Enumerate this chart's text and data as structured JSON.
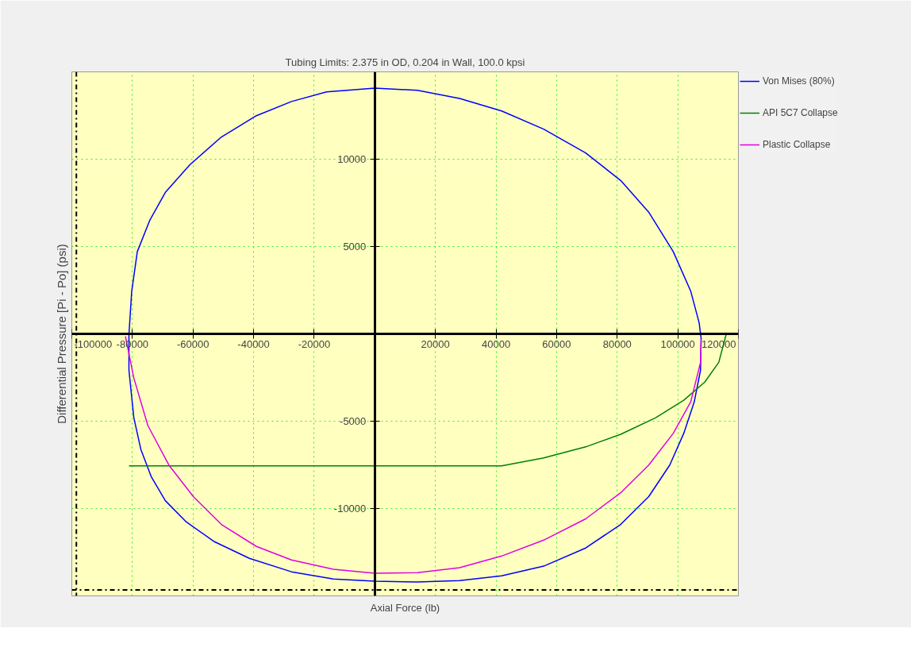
{
  "chart_data": {
    "type": "line",
    "title": "Tubing Limits: 2.375 in OD, 0.204 in Wall, 100.0 kpsi",
    "xlabel": "Axial Force (lb)",
    "ylabel": "Differential Pressure [Pi - Po] (psi)",
    "xlim": [
      -100000,
      120000
    ],
    "ylim": [
      -15000,
      15000
    ],
    "xticks": [
      -100000,
      -80000,
      -60000,
      -40000,
      -20000,
      {
        "value": 0,
        "label": null
      },
      20000,
      40000,
      60000,
      80000,
      100000,
      120000
    ],
    "yticks": [
      -10000,
      -5000,
      {
        "value": 0,
        "label": null
      },
      5000,
      10000
    ],
    "grid": true,
    "legend": "right",
    "line_style": "solid",
    "marker": "none",
    "ref_lines": [
      {
        "axis": "x",
        "value": -98500,
        "color": "#000000",
        "line_style": "dashdot"
      },
      {
        "axis": "y",
        "value": -14660,
        "color": "#000000",
        "line_style": "dashdot"
      }
    ],
    "series": [
      {
        "name": "Von Mises (80%)",
        "color": "#0000ff",
        "x": [
          -81150,
          -80230,
          -78380,
          -74220,
          -69130,
          -61040,
          -50630,
          -39070,
          -27510,
          -15950,
          0,
          14100,
          27980,
          41850,
          55720,
          69590,
          81150,
          90400,
          98490,
          104270,
          107050,
          107700,
          107500,
          105430,
          101960,
          97340,
          90400,
          81150,
          69590,
          55720,
          41850,
          27980,
          14100,
          0,
          -13640,
          -27510,
          -41380,
          -52940,
          -62190,
          -69130,
          -73750,
          -77220,
          -79530,
          -81150,
          -81150
        ],
        "values": [
          -50,
          2440,
          4710,
          6520,
          8100,
          9680,
          11270,
          12490,
          13300,
          13850,
          14070,
          13940,
          13480,
          12760,
          11720,
          10360,
          8780,
          6970,
          4710,
          2440,
          630,
          -270,
          -2080,
          -3890,
          -5700,
          -7510,
          -9320,
          -10910,
          -12260,
          -13300,
          -13850,
          -14120,
          -14210,
          -14160,
          -14030,
          -13620,
          -12850,
          -11900,
          -10770,
          -9550,
          -8190,
          -6610,
          -4800,
          -2080,
          0
        ]
      },
      {
        "name": "API 5C7 Collapse",
        "color": "#008000",
        "x": [
          -81150,
          41850,
          55720,
          69590,
          81150,
          92710,
          101960,
          108890,
          113520,
          116000
        ],
        "values": [
          -7560,
          -7560,
          -7100,
          -6470,
          -5750,
          -4800,
          -3800,
          -2760,
          -1630,
          0
        ]
      },
      {
        "name": "Plastic Collapse",
        "color": "#e000e0",
        "x": [
          -82300,
          -79530,
          -74900,
          -67970,
          -59880,
          -50630,
          -39070,
          -27510,
          -13640,
          0,
          14100,
          27980,
          41850,
          55720,
          69590,
          81150,
          90400,
          98490,
          104270,
          107500,
          107700
        ],
        "values": [
          -140,
          -2530,
          -5250,
          -7510,
          -9320,
          -10910,
          -12170,
          -12940,
          -13480,
          -13710,
          -13670,
          -13390,
          -12720,
          -11810,
          -10590,
          -9100,
          -7510,
          -5700,
          -3890,
          -1630,
          -270
        ]
      }
    ]
  }
}
